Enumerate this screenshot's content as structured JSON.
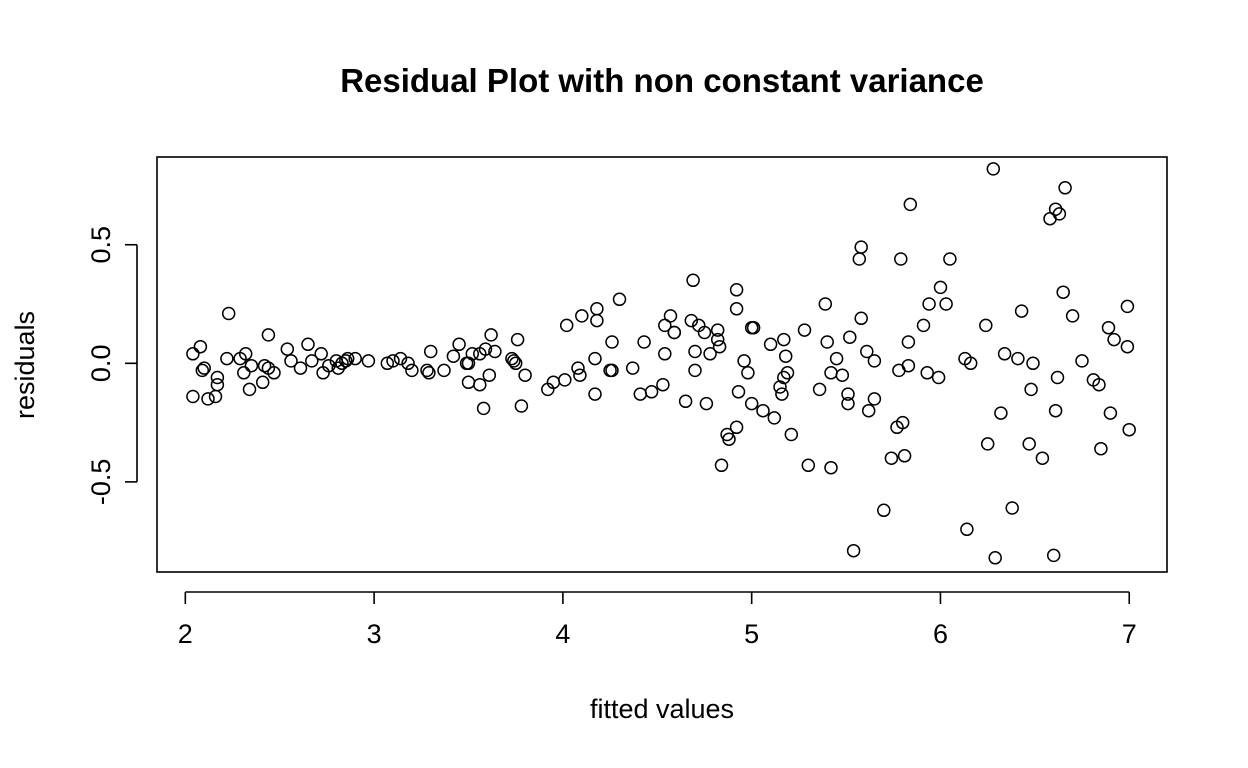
{
  "chart_data": {
    "type": "scatter",
    "title": "Residual Plot with non constant variance",
    "xlabel": "fitted values",
    "ylabel": "residuals",
    "xlim": [
      1.85,
      7.2
    ],
    "ylim": [
      -0.88,
      0.87
    ],
    "xticks": [
      2,
      3,
      4,
      5,
      6,
      7
    ],
    "xtick_labels": [
      "2",
      "3",
      "4",
      "5",
      "6",
      "7"
    ],
    "yticks": [
      -0.5,
      0.0,
      0.5
    ],
    "ytick_labels": [
      "-0.5",
      "0.0",
      "0.5"
    ],
    "grid": false,
    "legend": "none",
    "marker": "open-circle",
    "points": [
      [
        2.04,
        0.04
      ],
      [
        2.04,
        -0.14
      ],
      [
        2.08,
        0.07
      ],
      [
        2.09,
        -0.03
      ],
      [
        2.1,
        -0.02
      ],
      [
        2.12,
        -0.15
      ],
      [
        2.16,
        -0.14
      ],
      [
        2.17,
        -0.09
      ],
      [
        2.17,
        -0.06
      ],
      [
        2.23,
        0.21
      ],
      [
        2.22,
        0.02
      ],
      [
        2.29,
        0.02
      ],
      [
        2.31,
        -0.04
      ],
      [
        2.32,
        0.04
      ],
      [
        2.34,
        -0.11
      ],
      [
        2.35,
        -0.01
      ],
      [
        2.41,
        -0.08
      ],
      [
        2.42,
        -0.01
      ],
      [
        2.44,
        0.12
      ],
      [
        2.44,
        -0.02
      ],
      [
        2.47,
        -0.04
      ],
      [
        2.54,
        0.06
      ],
      [
        2.56,
        0.01
      ],
      [
        2.61,
        -0.02
      ],
      [
        2.65,
        0.08
      ],
      [
        2.67,
        0.01
      ],
      [
        2.72,
        0.04
      ],
      [
        2.73,
        -0.04
      ],
      [
        2.76,
        -0.01
      ],
      [
        2.8,
        0.01
      ],
      [
        2.81,
        -0.02
      ],
      [
        2.83,
        0.0
      ],
      [
        2.85,
        0.01
      ],
      [
        2.86,
        0.02
      ],
      [
        2.9,
        0.02
      ],
      [
        2.97,
        0.01
      ],
      [
        3.07,
        0.0
      ],
      [
        3.1,
        0.01
      ],
      [
        3.14,
        0.02
      ],
      [
        3.18,
        0.0
      ],
      [
        3.2,
        -0.03
      ],
      [
        3.28,
        -0.03
      ],
      [
        3.29,
        -0.04
      ],
      [
        3.3,
        0.05
      ],
      [
        3.37,
        -0.03
      ],
      [
        3.42,
        0.03
      ],
      [
        3.45,
        0.08
      ],
      [
        3.49,
        0.0
      ],
      [
        3.5,
        0.0
      ],
      [
        3.5,
        -0.08
      ],
      [
        3.52,
        0.04
      ],
      [
        3.56,
        -0.09
      ],
      [
        3.56,
        0.04
      ],
      [
        3.58,
        -0.19
      ],
      [
        3.59,
        0.06
      ],
      [
        3.61,
        -0.05
      ],
      [
        3.62,
        0.12
      ],
      [
        3.64,
        0.05
      ],
      [
        3.73,
        0.02
      ],
      [
        3.74,
        0.01
      ],
      [
        3.75,
        0.0
      ],
      [
        3.76,
        0.1
      ],
      [
        3.78,
        -0.18
      ],
      [
        3.8,
        -0.05
      ],
      [
        3.92,
        -0.11
      ],
      [
        3.95,
        -0.08
      ],
      [
        4.01,
        -0.07
      ],
      [
        4.02,
        0.16
      ],
      [
        4.08,
        -0.02
      ],
      [
        4.09,
        -0.05
      ],
      [
        4.1,
        0.2
      ],
      [
        4.17,
        -0.13
      ],
      [
        4.17,
        0.02
      ],
      [
        4.18,
        0.18
      ],
      [
        4.18,
        0.23
      ],
      [
        4.25,
        -0.03
      ],
      [
        4.26,
        0.09
      ],
      [
        4.26,
        -0.03
      ],
      [
        4.3,
        0.27
      ],
      [
        4.37,
        -0.02
      ],
      [
        4.41,
        -0.13
      ],
      [
        4.43,
        0.09
      ],
      [
        4.47,
        -0.12
      ],
      [
        4.53,
        -0.09
      ],
      [
        4.54,
        0.04
      ],
      [
        4.54,
        0.16
      ],
      [
        4.57,
        0.2
      ],
      [
        4.59,
        0.13
      ],
      [
        4.59,
        0.13
      ],
      [
        4.65,
        -0.16
      ],
      [
        4.68,
        0.18
      ],
      [
        4.69,
        0.35
      ],
      [
        4.7,
        0.05
      ],
      [
        4.7,
        -0.03
      ],
      [
        4.72,
        0.16
      ],
      [
        4.76,
        -0.17
      ],
      [
        4.75,
        0.13
      ],
      [
        4.78,
        0.04
      ],
      [
        4.82,
        0.14
      ],
      [
        4.82,
        0.1
      ],
      [
        4.83,
        0.07
      ],
      [
        4.84,
        -0.43
      ],
      [
        4.87,
        -0.3
      ],
      [
        4.88,
        -0.32
      ],
      [
        4.92,
        0.31
      ],
      [
        4.92,
        -0.27
      ],
      [
        4.92,
        0.23
      ],
      [
        4.93,
        -0.12
      ],
      [
        4.96,
        0.01
      ],
      [
        4.98,
        -0.04
      ],
      [
        5.0,
        0.15
      ],
      [
        5.0,
        -0.17
      ],
      [
        5.01,
        0.15
      ],
      [
        5.06,
        -0.2
      ],
      [
        5.1,
        0.08
      ],
      [
        5.12,
        -0.23
      ],
      [
        5.15,
        -0.1
      ],
      [
        5.16,
        -0.13
      ],
      [
        5.17,
        0.1
      ],
      [
        5.17,
        -0.06
      ],
      [
        5.18,
        0.03
      ],
      [
        5.19,
        -0.04
      ],
      [
        5.21,
        -0.3
      ],
      [
        5.28,
        0.14
      ],
      [
        5.3,
        -0.43
      ],
      [
        5.36,
        -0.11
      ],
      [
        5.39,
        0.25
      ],
      [
        5.4,
        0.09
      ],
      [
        5.42,
        -0.04
      ],
      [
        5.42,
        -0.44
      ],
      [
        5.45,
        0.02
      ],
      [
        5.48,
        -0.05
      ],
      [
        5.51,
        -0.13
      ],
      [
        5.51,
        -0.17
      ],
      [
        5.52,
        0.11
      ],
      [
        5.54,
        -0.79
      ],
      [
        5.57,
        0.44
      ],
      [
        5.58,
        0.49
      ],
      [
        5.58,
        0.19
      ],
      [
        5.61,
        0.05
      ],
      [
        5.62,
        -0.2
      ],
      [
        5.65,
        -0.15
      ],
      [
        5.65,
        0.01
      ],
      [
        5.7,
        -0.62
      ],
      [
        5.74,
        -0.4
      ],
      [
        5.77,
        -0.27
      ],
      [
        5.78,
        -0.03
      ],
      [
        5.79,
        0.44
      ],
      [
        5.8,
        -0.25
      ],
      [
        5.81,
        -0.39
      ],
      [
        5.83,
        -0.01
      ],
      [
        5.83,
        0.09
      ],
      [
        5.84,
        0.67
      ],
      [
        5.91,
        0.16
      ],
      [
        5.93,
        -0.04
      ],
      [
        5.94,
        0.25
      ],
      [
        5.99,
        -0.06
      ],
      [
        6.0,
        0.32
      ],
      [
        6.03,
        0.25
      ],
      [
        6.05,
        0.44
      ],
      [
        6.13,
        0.02
      ],
      [
        6.14,
        -0.7
      ],
      [
        6.16,
        0.0
      ],
      [
        6.24,
        0.16
      ],
      [
        6.25,
        -0.34
      ],
      [
        6.28,
        0.82
      ],
      [
        6.29,
        -0.82
      ],
      [
        6.32,
        -0.21
      ],
      [
        6.34,
        0.04
      ],
      [
        6.38,
        -0.61
      ],
      [
        6.41,
        0.02
      ],
      [
        6.43,
        0.22
      ],
      [
        6.47,
        -0.34
      ],
      [
        6.48,
        -0.11
      ],
      [
        6.49,
        0.0
      ],
      [
        6.54,
        -0.4
      ],
      [
        6.58,
        0.61
      ],
      [
        6.6,
        -0.81
      ],
      [
        6.61,
        0.65
      ],
      [
        6.61,
        -0.2
      ],
      [
        6.62,
        -0.06
      ],
      [
        6.63,
        0.63
      ],
      [
        6.65,
        0.3
      ],
      [
        6.66,
        0.74
      ],
      [
        6.7,
        0.2
      ],
      [
        6.75,
        0.01
      ],
      [
        6.81,
        -0.07
      ],
      [
        6.84,
        -0.09
      ],
      [
        6.85,
        -0.36
      ],
      [
        6.89,
        0.15
      ],
      [
        6.9,
        -0.21
      ],
      [
        6.92,
        0.1
      ],
      [
        6.99,
        0.24
      ],
      [
        6.99,
        0.07
      ],
      [
        7.0,
        -0.28
      ]
    ]
  }
}
